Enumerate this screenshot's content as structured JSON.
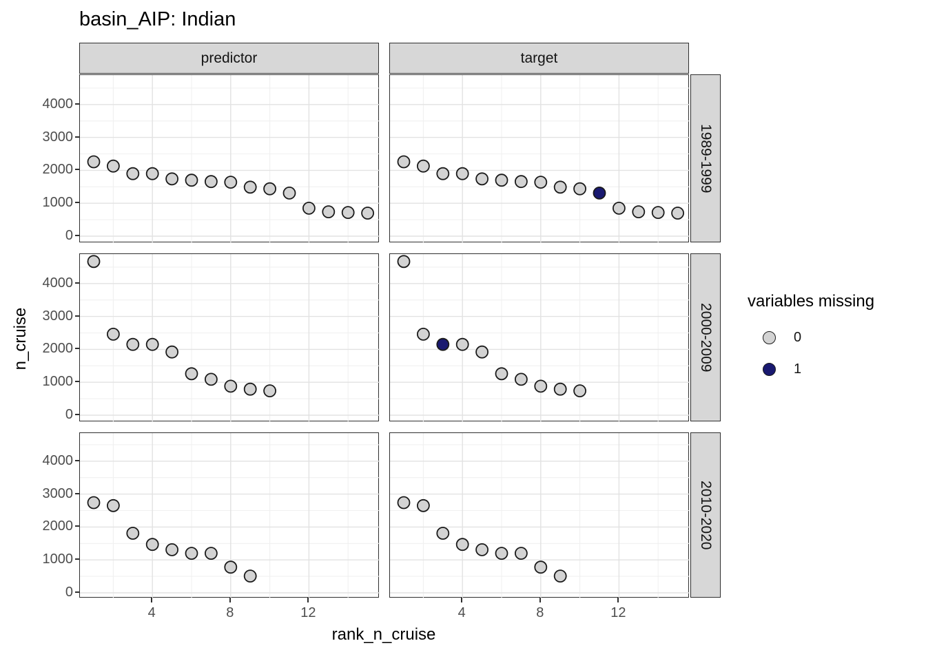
{
  "chart_data": {
    "type": "scatter",
    "title": "basin_AIP: Indian",
    "xlabel": "rank_n_cruise",
    "ylabel": "n_cruise",
    "facet_cols": [
      "predictor",
      "target"
    ],
    "facet_rows": [
      "1989-1999",
      "2000-2009",
      "2010-2020"
    ],
    "x_ticks": [
      4,
      8,
      12
    ],
    "x_minor": [
      2,
      6,
      10,
      14
    ],
    "y_ticks": [
      0,
      1000,
      2000,
      3000,
      4000
    ],
    "y_minor": [
      500,
      1500,
      2500,
      3500,
      4500
    ],
    "xlim": [
      0.3,
      15.6
    ],
    "ylim": [
      -210,
      4900
    ],
    "grid": "on",
    "legend_position": "right",
    "legend": {
      "title": "variables missing",
      "items": [
        {
          "label": "0",
          "color": "#d3d3d3"
        },
        {
          "label": "1",
          "color": "#191970"
        }
      ]
    },
    "panels": [
      {
        "row": "1989-1999",
        "col": "predictor",
        "points": [
          {
            "x": 1,
            "y": 2260,
            "missing": 0
          },
          {
            "x": 2,
            "y": 2130,
            "missing": 0
          },
          {
            "x": 3,
            "y": 1900,
            "missing": 0
          },
          {
            "x": 4,
            "y": 1900,
            "missing": 0
          },
          {
            "x": 5,
            "y": 1740,
            "missing": 0
          },
          {
            "x": 6,
            "y": 1700,
            "missing": 0
          },
          {
            "x": 7,
            "y": 1660,
            "missing": 0
          },
          {
            "x": 8,
            "y": 1640,
            "missing": 0
          },
          {
            "x": 9,
            "y": 1490,
            "missing": 0
          },
          {
            "x": 10,
            "y": 1440,
            "missing": 0
          },
          {
            "x": 11,
            "y": 1310,
            "missing": 0
          },
          {
            "x": 12,
            "y": 850,
            "missing": 0
          },
          {
            "x": 13,
            "y": 740,
            "missing": 0
          },
          {
            "x": 14,
            "y": 720,
            "missing": 0
          },
          {
            "x": 15,
            "y": 700,
            "missing": 0
          }
        ]
      },
      {
        "row": "1989-1999",
        "col": "target",
        "points": [
          {
            "x": 1,
            "y": 2260,
            "missing": 0
          },
          {
            "x": 2,
            "y": 2130,
            "missing": 0
          },
          {
            "x": 3,
            "y": 1900,
            "missing": 0
          },
          {
            "x": 4,
            "y": 1900,
            "missing": 0
          },
          {
            "x": 5,
            "y": 1740,
            "missing": 0
          },
          {
            "x": 6,
            "y": 1700,
            "missing": 0
          },
          {
            "x": 7,
            "y": 1660,
            "missing": 0
          },
          {
            "x": 8,
            "y": 1640,
            "missing": 0
          },
          {
            "x": 9,
            "y": 1490,
            "missing": 0
          },
          {
            "x": 10,
            "y": 1440,
            "missing": 0
          },
          {
            "x": 11,
            "y": 1310,
            "missing": 1
          },
          {
            "x": 12,
            "y": 850,
            "missing": 0
          },
          {
            "x": 13,
            "y": 740,
            "missing": 0
          },
          {
            "x": 14,
            "y": 720,
            "missing": 0
          },
          {
            "x": 15,
            "y": 700,
            "missing": 0
          }
        ]
      },
      {
        "row": "2000-2009",
        "col": "predictor",
        "points": [
          {
            "x": 1,
            "y": 4670,
            "missing": 0
          },
          {
            "x": 2,
            "y": 2460,
            "missing": 0
          },
          {
            "x": 3,
            "y": 2150,
            "missing": 0
          },
          {
            "x": 4,
            "y": 2150,
            "missing": 0
          },
          {
            "x": 5,
            "y": 1920,
            "missing": 0
          },
          {
            "x": 6,
            "y": 1260,
            "missing": 0
          },
          {
            "x": 7,
            "y": 1090,
            "missing": 0
          },
          {
            "x": 8,
            "y": 880,
            "missing": 0
          },
          {
            "x": 9,
            "y": 790,
            "missing": 0
          },
          {
            "x": 10,
            "y": 740,
            "missing": 0
          }
        ]
      },
      {
        "row": "2000-2009",
        "col": "target",
        "points": [
          {
            "x": 1,
            "y": 4670,
            "missing": 0
          },
          {
            "x": 2,
            "y": 2460,
            "missing": 0
          },
          {
            "x": 3,
            "y": 2150,
            "missing": 1
          },
          {
            "x": 4,
            "y": 2150,
            "missing": 0
          },
          {
            "x": 5,
            "y": 1920,
            "missing": 0
          },
          {
            "x": 6,
            "y": 1260,
            "missing": 0
          },
          {
            "x": 7,
            "y": 1090,
            "missing": 0
          },
          {
            "x": 8,
            "y": 880,
            "missing": 0
          },
          {
            "x": 9,
            "y": 790,
            "missing": 0
          },
          {
            "x": 10,
            "y": 740,
            "missing": 0
          }
        ]
      },
      {
        "row": "2010-2020",
        "col": "predictor",
        "points": [
          {
            "x": 1,
            "y": 2740,
            "missing": 0
          },
          {
            "x": 2,
            "y": 2650,
            "missing": 0
          },
          {
            "x": 3,
            "y": 1810,
            "missing": 0
          },
          {
            "x": 4,
            "y": 1470,
            "missing": 0
          },
          {
            "x": 5,
            "y": 1310,
            "missing": 0
          },
          {
            "x": 6,
            "y": 1200,
            "missing": 0
          },
          {
            "x": 7,
            "y": 1200,
            "missing": 0
          },
          {
            "x": 8,
            "y": 780,
            "missing": 0
          },
          {
            "x": 9,
            "y": 510,
            "missing": 0
          }
        ]
      },
      {
        "row": "2010-2020",
        "col": "target",
        "points": [
          {
            "x": 1,
            "y": 2740,
            "missing": 0
          },
          {
            "x": 2,
            "y": 2650,
            "missing": 0
          },
          {
            "x": 3,
            "y": 1810,
            "missing": 0
          },
          {
            "x": 4,
            "y": 1470,
            "missing": 0
          },
          {
            "x": 5,
            "y": 1310,
            "missing": 0
          },
          {
            "x": 6,
            "y": 1200,
            "missing": 0
          },
          {
            "x": 7,
            "y": 1200,
            "missing": 0
          },
          {
            "x": 8,
            "y": 780,
            "missing": 0
          },
          {
            "x": 9,
            "y": 510,
            "missing": 0
          }
        ]
      }
    ]
  }
}
